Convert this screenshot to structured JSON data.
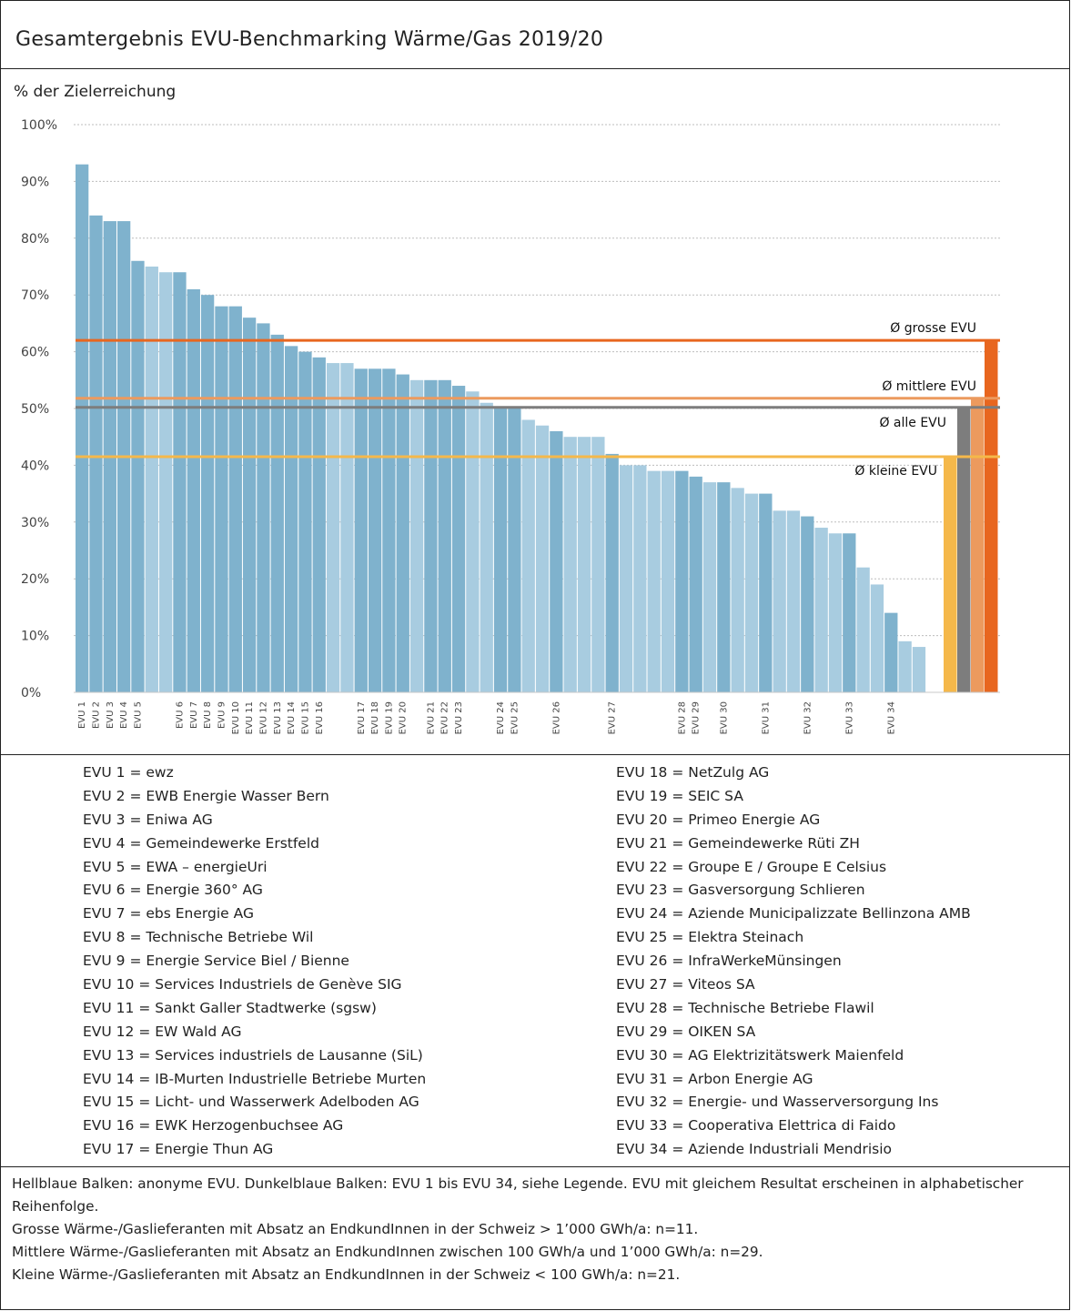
{
  "title": "Gesamtergebnis EVU-Benchmarking Wärme/Gas 2019/20",
  "chart_data": {
    "type": "bar",
    "ylabel": "% der Zielerreichung",
    "ylim": [
      0,
      100
    ],
    "y_ticks": [
      "0%",
      "10%",
      "20%",
      "30%",
      "40%",
      "50%",
      "60%",
      "70%",
      "80%",
      "90%",
      "100%"
    ],
    "grid": true,
    "colors": {
      "named": "#7fb2cd",
      "anonymous": "#a8cce0",
      "gross": "#e8661f",
      "mittel": "#ec9a5e",
      "alle": "#7d7d7d",
      "klein": "#f5b84a"
    },
    "bars": [
      {
        "label": "EVU 1",
        "value": 93,
        "named": true
      },
      {
        "label": "EVU 2",
        "value": 84,
        "named": true
      },
      {
        "label": "EVU 3",
        "value": 83,
        "named": true
      },
      {
        "label": "EVU 4",
        "value": 83,
        "named": true
      },
      {
        "label": "EVU 5",
        "value": 76,
        "named": true
      },
      {
        "label": "",
        "value": 75,
        "named": false
      },
      {
        "label": "",
        "value": 74,
        "named": false
      },
      {
        "label": "EVU 6",
        "value": 74,
        "named": true
      },
      {
        "label": "EVU 7",
        "value": 71,
        "named": true
      },
      {
        "label": "EVU 8",
        "value": 70,
        "named": true
      },
      {
        "label": "EVU 9",
        "value": 68,
        "named": true
      },
      {
        "label": "EVU 10",
        "value": 68,
        "named": true
      },
      {
        "label": "EVU 11",
        "value": 66,
        "named": true
      },
      {
        "label": "EVU 12",
        "value": 65,
        "named": true
      },
      {
        "label": "EVU 13",
        "value": 63,
        "named": true
      },
      {
        "label": "EVU 14",
        "value": 61,
        "named": true
      },
      {
        "label": "EVU 15",
        "value": 60,
        "named": true
      },
      {
        "label": "EVU 16",
        "value": 59,
        "named": true
      },
      {
        "label": "",
        "value": 58,
        "named": false
      },
      {
        "label": "",
        "value": 58,
        "named": false
      },
      {
        "label": "EVU 17",
        "value": 57,
        "named": true
      },
      {
        "label": "EVU 18",
        "value": 57,
        "named": true
      },
      {
        "label": "EVU 19",
        "value": 57,
        "named": true
      },
      {
        "label": "EVU 20",
        "value": 56,
        "named": true
      },
      {
        "label": "",
        "value": 55,
        "named": false
      },
      {
        "label": "EVU 21",
        "value": 55,
        "named": true
      },
      {
        "label": "EVU 22",
        "value": 55,
        "named": true
      },
      {
        "label": "EVU 23",
        "value": 54,
        "named": true
      },
      {
        "label": "",
        "value": 53,
        "named": false
      },
      {
        "label": "",
        "value": 51,
        "named": false
      },
      {
        "label": "EVU 24",
        "value": 50,
        "named": true
      },
      {
        "label": "EVU 25",
        "value": 50,
        "named": true
      },
      {
        "label": "",
        "value": 48,
        "named": false
      },
      {
        "label": "",
        "value": 47,
        "named": false
      },
      {
        "label": "EVU 26",
        "value": 46,
        "named": true
      },
      {
        "label": "",
        "value": 45,
        "named": false
      },
      {
        "label": "",
        "value": 45,
        "named": false
      },
      {
        "label": "",
        "value": 45,
        "named": false
      },
      {
        "label": "EVU 27",
        "value": 42,
        "named": true
      },
      {
        "label": "",
        "value": 40,
        "named": false
      },
      {
        "label": "",
        "value": 40,
        "named": false
      },
      {
        "label": "",
        "value": 39,
        "named": false
      },
      {
        "label": "",
        "value": 39,
        "named": false
      },
      {
        "label": "EVU 28",
        "value": 39,
        "named": true
      },
      {
        "label": "EVU 29",
        "value": 38,
        "named": true
      },
      {
        "label": "",
        "value": 37,
        "named": false
      },
      {
        "label": "EVU 30",
        "value": 37,
        "named": true
      },
      {
        "label": "",
        "value": 36,
        "named": false
      },
      {
        "label": "",
        "value": 35,
        "named": false
      },
      {
        "label": "EVU 31",
        "value": 35,
        "named": true
      },
      {
        "label": "",
        "value": 32,
        "named": false
      },
      {
        "label": "",
        "value": 32,
        "named": false
      },
      {
        "label": "EVU 32",
        "value": 31,
        "named": true
      },
      {
        "label": "",
        "value": 29,
        "named": false
      },
      {
        "label": "",
        "value": 28,
        "named": false
      },
      {
        "label": "EVU 33",
        "value": 28,
        "named": true
      },
      {
        "label": "",
        "value": 22,
        "named": false
      },
      {
        "label": "",
        "value": 19,
        "named": false
      },
      {
        "label": "EVU 34",
        "value": 14,
        "named": true
      },
      {
        "label": "",
        "value": 9,
        "named": false
      },
      {
        "label": "",
        "value": 8,
        "named": false
      }
    ],
    "averages": [
      {
        "key": "klein",
        "label": "Ø kleine EVU",
        "value": 41.5
      },
      {
        "key": "alle",
        "label": "Ø alle EVU",
        "value": 50.2
      },
      {
        "key": "mittel",
        "label": "Ø mittlere EVU",
        "value": 51.8
      },
      {
        "key": "gross",
        "label": "Ø grosse EVU",
        "value": 62
      }
    ]
  },
  "legend": {
    "left": [
      "EVU 1 = ewz",
      "EVU 2 = EWB Energie Wasser Bern",
      "EVU 3 = Eniwa AG",
      "EVU 4 = Gemeindewerke Erstfeld",
      "EVU 5 = EWA – energieUri",
      "EVU 6 = Energie 360° AG",
      "EVU 7 = ebs Energie AG",
      "EVU 8 = Technische Betriebe Wil",
      "EVU 9 = Energie Service Biel / Bienne",
      "EVU 10 = Services Industriels de Genève SIG",
      "EVU 11 = Sankt Galler Stadtwerke (sgsw)",
      "EVU 12 = EW Wald AG",
      "EVU 13 = Services industriels de Lausanne (SiL)",
      "EVU 14 = IB-Murten Industrielle Betriebe Murten",
      "EVU 15 = Licht- und Wasserwerk Adelboden AG",
      "EVU 16 = EWK Herzogenbuchsee AG",
      "EVU 17 = Energie Thun AG"
    ],
    "right": [
      "EVU 18 = NetZulg AG",
      "EVU 19 = SEIC SA",
      "EVU 20 = Primeo Energie AG",
      "EVU 21 = Gemeindewerke Rüti ZH",
      "EVU 22 = Groupe E / Groupe E Celsius",
      "EVU 23 = Gasversorgung Schlieren",
      "EVU 24 = Aziende Municipalizzate Bellinzona AMB",
      "EVU 25 = Elektra Steinach",
      "EVU 26 = InfraWerkeMünsingen",
      "EVU 27 = Viteos SA",
      "EVU 28 = Technische Betriebe Flawil",
      "EVU 29 = OIKEN SA",
      "EVU 30 = AG Elektrizitätswerk Maienfeld",
      "EVU 31 = Arbon Energie AG",
      "EVU 32 = Energie- und Wasserversorgung Ins",
      "EVU 33 = Cooperativa Elettrica di Faido",
      "EVU 34 = Aziende Industriali Mendrisio"
    ]
  },
  "notes": [
    "Hellblaue Balken: anonyme EVU. Dunkelblaue Balken: EVU 1 bis EVU 34, siehe Legende. EVU mit gleichem Resultat erscheinen in alphabetischer Reihenfolge.",
    "Grosse Wärme-/Gaslieferanten mit Absatz an EndkundInnen in der Schweiz > 1’000 GWh/a: n=11.",
    "Mittlere Wärme-/Gaslieferanten mit Absatz an EndkundInnen zwischen 100 GWh/a und 1’000 GWh/a: n=29.",
    "Kleine Wärme-/Gaslieferanten mit Absatz an EndkundInnen in der Schweiz < 100 GWh/a: n=21."
  ]
}
